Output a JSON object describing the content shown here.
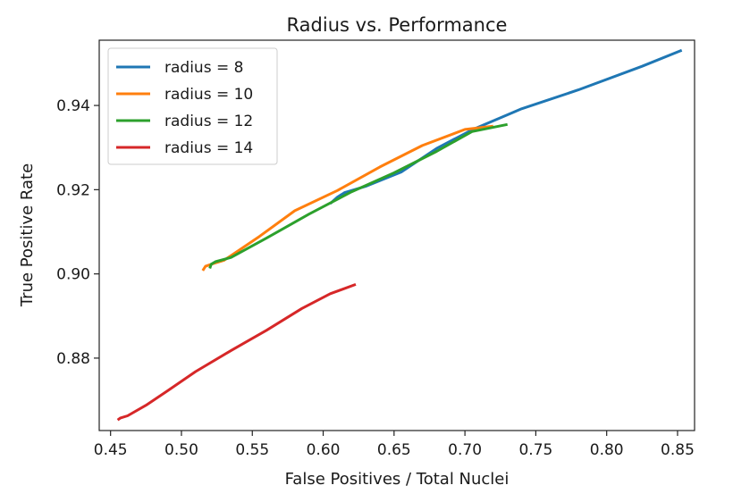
{
  "chart_data": {
    "type": "line",
    "title": "Radius vs. Performance",
    "xlabel": "False Positives / Total Nuclei",
    "ylabel": "True Positive Rate",
    "xlim": [
      0.442,
      0.862
    ],
    "ylim": [
      0.8628,
      0.9555
    ],
    "xticks": [
      0.45,
      0.5,
      0.55,
      0.6,
      0.65,
      0.7,
      0.75,
      0.8,
      0.85
    ],
    "xtick_labels": [
      "0.45",
      "0.50",
      "0.55",
      "0.60",
      "0.65",
      "0.70",
      "0.75",
      "0.80",
      "0.85"
    ],
    "yticks": [
      0.88,
      0.9,
      0.92,
      0.94
    ],
    "ytick_labels": [
      "0.88",
      "0.90",
      "0.92",
      "0.94"
    ],
    "grid": false,
    "legend": "top-left",
    "series": [
      {
        "name": "radius = 8",
        "color": "#1f77b4",
        "x": [
          0.605,
          0.61,
          0.615,
          0.63,
          0.655,
          0.68,
          0.705,
          0.74,
          0.78,
          0.825,
          0.853
        ],
        "y": [
          0.9167,
          0.9182,
          0.9193,
          0.9208,
          0.9242,
          0.9298,
          0.9342,
          0.9392,
          0.9437,
          0.9493,
          0.9531
        ]
      },
      {
        "name": "radius = 10",
        "color": "#ff7f0e",
        "x": [
          0.515,
          0.517,
          0.522,
          0.53,
          0.555,
          0.58,
          0.61,
          0.64,
          0.67,
          0.7,
          0.72
        ],
        "y": [
          0.9008,
          0.9018,
          0.9024,
          0.9032,
          0.9089,
          0.915,
          0.9198,
          0.9254,
          0.9305,
          0.9343,
          0.9351
        ]
      },
      {
        "name": "radius = 12",
        "color": "#2ca02c",
        "x": [
          0.52,
          0.521,
          0.524,
          0.535,
          0.56,
          0.59,
          0.62,
          0.65,
          0.68,
          0.705,
          0.73
        ],
        "y": [
          0.9013,
          0.9023,
          0.9029,
          0.9039,
          0.9085,
          0.9142,
          0.9195,
          0.924,
          0.9291,
          0.9338,
          0.9355
        ]
      },
      {
        "name": "radius = 14",
        "color": "#d62728",
        "x": [
          0.455,
          0.457,
          0.462,
          0.475,
          0.49,
          0.51,
          0.535,
          0.56,
          0.585,
          0.605,
          0.623
        ],
        "y": [
          0.8653,
          0.8658,
          0.8663,
          0.8688,
          0.8722,
          0.8768,
          0.8818,
          0.8866,
          0.8918,
          0.8953,
          0.8975
        ]
      }
    ]
  }
}
